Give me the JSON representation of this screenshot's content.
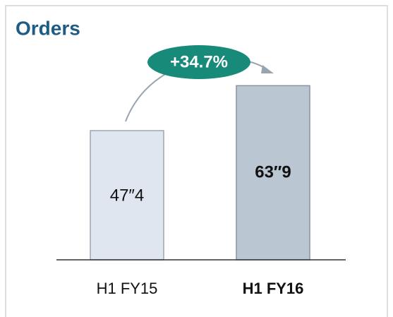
{
  "chart_data": {
    "type": "bar",
    "title": "Orders",
    "categories": [
      "H1 FY15",
      "H1 FY16"
    ],
    "values": [
      47.4,
      63.9
    ],
    "value_labels": [
      "47″4",
      "63″9"
    ],
    "colors": [
      "#dfe6ef",
      "#bac6d2"
    ],
    "annotation": "+34.7%"
  }
}
